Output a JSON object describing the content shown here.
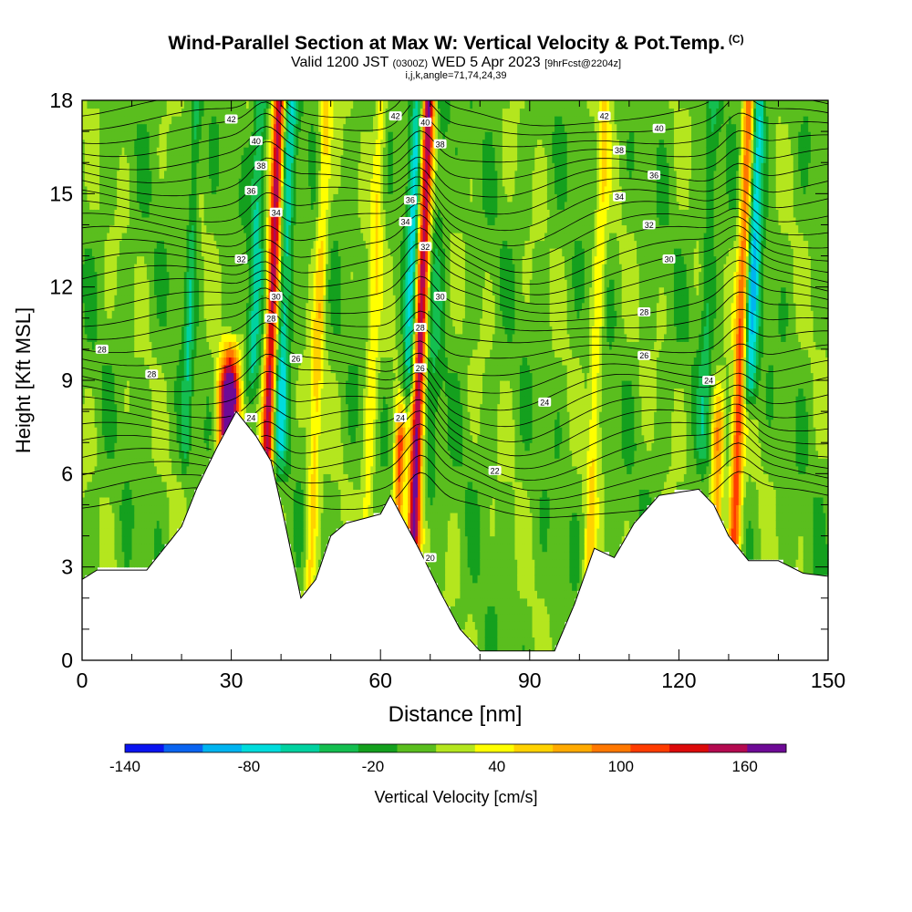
{
  "header": {
    "title": "Wind-Parallel Section at Max W: Vertical Velocity & Pot.Temp.",
    "title_mark": "(C)",
    "subtitle_main": "Valid 1200 JST",
    "subtitle_utc": "(0300Z)",
    "subtitle_date": "WED 5 Apr 2023",
    "subtitle_fcst": "[9hrFcst@2204z]",
    "params": "i,j,k,angle=71,74,24,39"
  },
  "chart_data": {
    "type": "heatmap",
    "xlabel": "Distance [nm]",
    "ylabel": "Height [Kft MSL]",
    "xlim": [
      0,
      150
    ],
    "ylim": [
      0,
      18
    ],
    "x_ticks": [
      "0",
      "30",
      "60",
      "90",
      "120",
      "150"
    ],
    "y_ticks": [
      "0",
      "3",
      "6",
      "9",
      "12",
      "15",
      "18"
    ],
    "terrain_height_kft": [
      [
        0,
        2.6
      ],
      [
        3,
        2.9
      ],
      [
        13,
        2.9
      ],
      [
        20,
        4.3
      ],
      [
        23,
        5.5
      ],
      [
        27,
        6.8
      ],
      [
        31,
        8.0
      ],
      [
        35,
        7.2
      ],
      [
        38,
        6.4
      ],
      [
        40,
        5.0
      ],
      [
        42,
        3.5
      ],
      [
        44,
        2.0
      ],
      [
        47,
        2.6
      ],
      [
        50,
        4.0
      ],
      [
        53,
        4.4
      ],
      [
        60,
        4.7
      ],
      [
        62,
        5.3
      ],
      [
        65,
        4.4
      ],
      [
        68,
        3.5
      ],
      [
        72,
        2.2
      ],
      [
        76,
        1.0
      ],
      [
        80,
        0.3
      ],
      [
        90,
        0.3
      ],
      [
        95,
        0.3
      ],
      [
        99,
        1.8
      ],
      [
        103,
        3.6
      ],
      [
        107,
        3.3
      ],
      [
        111,
        4.4
      ],
      [
        116,
        5.3
      ],
      [
        124,
        5.5
      ],
      [
        127,
        5.0
      ],
      [
        130,
        4.0
      ],
      [
        134,
        3.2
      ],
      [
        140,
        3.2
      ],
      [
        145,
        2.8
      ],
      [
        150,
        2.7
      ]
    ],
    "theta_contour_labels": [
      {
        "x": 30,
        "y": 17.4,
        "label": "42"
      },
      {
        "x": 35,
        "y": 16.7,
        "label": "40"
      },
      {
        "x": 36,
        "y": 15.9,
        "label": "38"
      },
      {
        "x": 34,
        "y": 15.1,
        "label": "36"
      },
      {
        "x": 39,
        "y": 14.4,
        "label": "34"
      },
      {
        "x": 32,
        "y": 12.9,
        "label": "32"
      },
      {
        "x": 39,
        "y": 11.7,
        "label": "30"
      },
      {
        "x": 38,
        "y": 11.0,
        "label": "28"
      },
      {
        "x": 43,
        "y": 9.7,
        "label": "26"
      },
      {
        "x": 34,
        "y": 7.8,
        "label": "24"
      },
      {
        "x": 4,
        "y": 10.0,
        "label": "28"
      },
      {
        "x": 14,
        "y": 9.2,
        "label": "28"
      },
      {
        "x": 63,
        "y": 17.5,
        "label": "42"
      },
      {
        "x": 69,
        "y": 17.3,
        "label": "40"
      },
      {
        "x": 72,
        "y": 16.6,
        "label": "38"
      },
      {
        "x": 66,
        "y": 14.8,
        "label": "36"
      },
      {
        "x": 65,
        "y": 14.1,
        "label": "34"
      },
      {
        "x": 69,
        "y": 13.3,
        "label": "32"
      },
      {
        "x": 72,
        "y": 11.7,
        "label": "30"
      },
      {
        "x": 68,
        "y": 10.7,
        "label": "28"
      },
      {
        "x": 68,
        "y": 9.4,
        "label": "26"
      },
      {
        "x": 64,
        "y": 7.8,
        "label": "24"
      },
      {
        "x": 83,
        "y": 6.1,
        "label": "22"
      },
      {
        "x": 70,
        "y": 3.3,
        "label": "20"
      },
      {
        "x": 93,
        "y": 8.3,
        "label": "24"
      },
      {
        "x": 105,
        "y": 17.5,
        "label": "42"
      },
      {
        "x": 116,
        "y": 17.1,
        "label": "40"
      },
      {
        "x": 108,
        "y": 16.4,
        "label": "38"
      },
      {
        "x": 115,
        "y": 15.6,
        "label": "36"
      },
      {
        "x": 108,
        "y": 14.9,
        "label": "34"
      },
      {
        "x": 114,
        "y": 14.0,
        "label": "32"
      },
      {
        "x": 118,
        "y": 12.9,
        "label": "30"
      },
      {
        "x": 113,
        "y": 11.2,
        "label": "28"
      },
      {
        "x": 113,
        "y": 9.8,
        "label": "26"
      },
      {
        "x": 126,
        "y": 9.0,
        "label": "24"
      }
    ],
    "updraft_columns": [
      {
        "x": 29.5,
        "ytop": 10.7,
        "w": 220,
        "half": 2.0
      },
      {
        "x": 37.5,
        "ytop": 18,
        "w": 160,
        "half": 1.2
      },
      {
        "x": 67.5,
        "ytop": 18,
        "w": 175,
        "half": 1.3
      },
      {
        "x": 64,
        "ytop": 9.0,
        "w": 110,
        "half": 1.0
      },
      {
        "x": 132,
        "ytop": 18,
        "w": 120,
        "half": 1.2
      },
      {
        "x": 128,
        "ytop": 9.5,
        "w": 90,
        "half": 1.2
      },
      {
        "x": 47,
        "ytop": 18,
        "w": 55,
        "half": 1.2
      },
      {
        "x": 58,
        "ytop": 18,
        "w": 45,
        "half": 1.2
      },
      {
        "x": 103,
        "ytop": 18,
        "w": 45,
        "half": 1.2
      }
    ],
    "downdraft_columns": [
      {
        "x": 34,
        "ybot": 8.0,
        "w": -55,
        "half": 1.4
      },
      {
        "x": 40,
        "ybot": 5.5,
        "w": -70,
        "half": 1.4
      },
      {
        "x": 65.5,
        "ybot": 7.5,
        "w": -80,
        "half": 1.3
      },
      {
        "x": 134,
        "ybot": 7.5,
        "w": -90,
        "half": 1.5
      },
      {
        "x": 21,
        "ybot": 5.5,
        "w": -45,
        "half": 1.0
      },
      {
        "x": 125,
        "ybot": 5.5,
        "w": -35,
        "half": 1.3
      },
      {
        "x": 70,
        "ybot": 4.0,
        "w": -30,
        "half": 2.0
      }
    ]
  },
  "colorbar": {
    "label": "Vertical Velocity [cm/s]",
    "tick_labels": [
      "-140",
      "-80",
      "-20",
      "40",
      "100",
      "160"
    ],
    "tick_values": [
      -140,
      -80,
      -20,
      40,
      100,
      160
    ],
    "levels": [
      -140,
      -120,
      -100,
      -80,
      -60,
      -40,
      -20,
      0,
      20,
      40,
      60,
      80,
      100,
      120,
      140,
      160,
      180
    ],
    "colors": [
      "#0a14f0",
      "#0a64f0",
      "#00b4f0",
      "#00dcdc",
      "#00d2a0",
      "#14be50",
      "#14a01e",
      "#5abe1e",
      "#b4e61e",
      "#ffff00",
      "#ffd200",
      "#ffaa00",
      "#ff7800",
      "#ff3c00",
      "#dc0a0a",
      "#b40a50",
      "#6e0a96"
    ]
  }
}
